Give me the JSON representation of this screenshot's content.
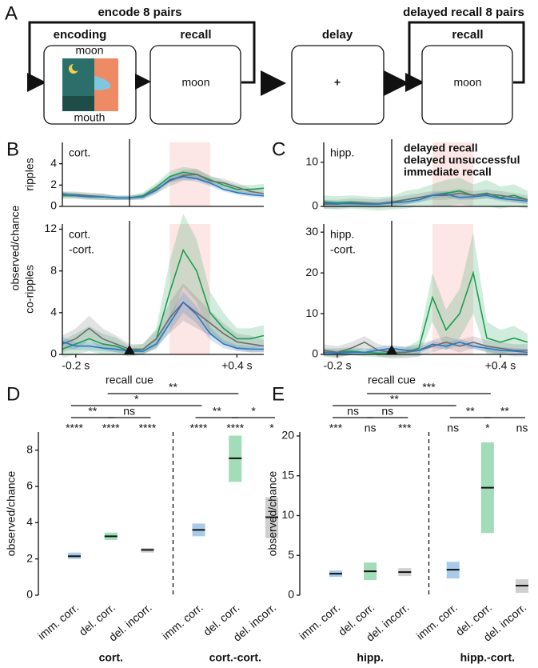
{
  "panel_a": {
    "letter": "A",
    "encode_loop": "encode 8 pairs",
    "encoding": "encoding",
    "recall": "recall",
    "cue_word_top": "moon",
    "cue_word_bottom": "mouth",
    "recall_word": "moon",
    "delay": "delay",
    "fixation": "+",
    "delayed_loop": "delayed recall 8 pairs",
    "delayed_recall": "recall",
    "delayed_word": "moon"
  },
  "chart_data": [
    {
      "type": "line",
      "panel": "B",
      "label": [
        "cort."
      ],
      "ylabel_outer": "observed/chance",
      "ylabel": "ripples",
      "x": [
        -0.25,
        -0.2,
        -0.15,
        -0.1,
        -0.05,
        0,
        0.05,
        0.1,
        0.15,
        0.2,
        0.25,
        0.3,
        0.35,
        0.4,
        0.45,
        0.5
      ],
      "xlim": [
        -0.25,
        0.5
      ],
      "ylim": [
        0,
        6
      ],
      "yticks": [
        0,
        2,
        4
      ],
      "vline": 0,
      "shade": [
        0.15,
        0.3
      ],
      "series": [
        {
          "color": "#1a9e50",
          "values": [
            1.0,
            1.0,
            0.9,
            0.9,
            0.8,
            0.8,
            1.0,
            1.8,
            2.8,
            3.2,
            3.0,
            2.5,
            2.0,
            1.6,
            1.6,
            1.7
          ],
          "err": [
            0.3,
            0.3,
            0.3,
            0.3,
            0.2,
            0.2,
            0.3,
            0.4,
            0.5,
            0.5,
            0.5,
            0.4,
            0.4,
            0.4,
            0.4,
            0.4
          ]
        },
        {
          "color": "#6e6e6e",
          "values": [
            1.1,
            1.1,
            1.0,
            0.9,
            0.8,
            0.8,
            0.9,
            1.6,
            2.4,
            2.9,
            3.0,
            2.4,
            2.2,
            1.8,
            1.4,
            1.2
          ],
          "err": [
            0.3,
            0.3,
            0.3,
            0.3,
            0.2,
            0.2,
            0.3,
            0.4,
            0.5,
            0.5,
            0.5,
            0.4,
            0.4,
            0.4,
            0.3,
            0.3
          ]
        },
        {
          "color": "#2b78c0",
          "values": [
            1.2,
            1.0,
            0.9,
            0.9,
            0.8,
            0.8,
            0.9,
            1.5,
            2.5,
            2.8,
            2.6,
            2.2,
            1.6,
            1.3,
            1.1,
            1.0
          ],
          "err": [
            0.2,
            0.2,
            0.2,
            0.2,
            0.2,
            0.2,
            0.2,
            0.3,
            0.3,
            0.3,
            0.3,
            0.3,
            0.2,
            0.2,
            0.2,
            0.2
          ]
        }
      ]
    },
    {
      "type": "line",
      "label": [
        "cort.",
        "-cort."
      ],
      "ylabel": "co-ripples",
      "x": [
        -0.25,
        -0.2,
        -0.15,
        -0.1,
        -0.05,
        0,
        0.05,
        0.1,
        0.15,
        0.2,
        0.25,
        0.3,
        0.35,
        0.4,
        0.45,
        0.5
      ],
      "xlim": [
        -0.25,
        0.5
      ],
      "ylim": [
        0,
        12.5
      ],
      "yticks": [
        0,
        4,
        8,
        12
      ],
      "vline": 0,
      "shade": [
        0.15,
        0.3
      ],
      "xticks": [
        {
          "value": -0.2,
          "label": "-0.2 s"
        },
        {
          "value": 0.4,
          "label": "+0.4 s"
        }
      ],
      "cue_label": "recall cue",
      "series": [
        {
          "color": "#1a9e50",
          "values": [
            0.5,
            1.0,
            1.5,
            1.0,
            0.8,
            0.3,
            0.5,
            1.5,
            6,
            10,
            8,
            4,
            2.5,
            1.5,
            1.5,
            1.8
          ],
          "err": [
            0.8,
            1,
            1.2,
            1,
            0.8,
            0.5,
            0.5,
            1,
            3,
            3.5,
            3,
            2,
            1.5,
            1,
            1,
            1
          ]
        },
        {
          "color": "#6e6e6e",
          "values": [
            1.0,
            1.5,
            2.5,
            1.5,
            1.0,
            0.5,
            0.5,
            1.5,
            3.5,
            5,
            4,
            3,
            2,
            1.2,
            1.0,
            0.8
          ],
          "err": [
            0.8,
            1,
            1.2,
            1,
            0.8,
            0.5,
            0.5,
            0.8,
            1.5,
            1.8,
            1.5,
            1.2,
            1,
            0.8,
            0.8,
            0.6
          ]
        },
        {
          "color": "#2b78c0",
          "values": [
            1.2,
            0.8,
            0.8,
            0.6,
            0.5,
            0.3,
            0.3,
            1.0,
            3.0,
            5,
            3.8,
            2,
            1,
            0.6,
            0.5,
            0.5
          ],
          "err": [
            0.5,
            0.4,
            0.4,
            0.3,
            0.3,
            0.2,
            0.2,
            0.4,
            0.8,
            1,
            0.8,
            0.6,
            0.4,
            0.3,
            0.3,
            0.3
          ]
        }
      ]
    },
    {
      "type": "line",
      "panel": "C",
      "label": [
        "hipp."
      ],
      "x": [
        -0.25,
        -0.2,
        -0.15,
        -0.1,
        -0.05,
        0,
        0.05,
        0.1,
        0.15,
        0.2,
        0.25,
        0.3,
        0.35,
        0.4,
        0.45,
        0.5
      ],
      "xlim": [
        -0.25,
        0.5
      ],
      "ylim": [
        0,
        14.5
      ],
      "yticks": [
        0,
        10
      ],
      "vline": 0,
      "shade": [
        0.15,
        0.3
      ],
      "series": [
        {
          "name": "delayed recall",
          "color": "#1a9e50",
          "values": [
            1,
            0.8,
            1,
            0.8,
            0.6,
            0.8,
            1.5,
            2,
            2.5,
            3,
            3.5,
            2.5,
            3,
            2,
            2.5,
            1.5
          ],
          "err": [
            1.5,
            1.5,
            1.5,
            1.5,
            1.5,
            1.5,
            2,
            2,
            2.5,
            3,
            3,
            2.5,
            3,
            2.5,
            2.5,
            2
          ]
        },
        {
          "name": "delayed unsuccessful",
          "color": "#6e6e6e",
          "values": [
            0.5,
            0.5,
            0.8,
            0.7,
            0.6,
            1,
            1.5,
            2,
            2.5,
            2.5,
            3,
            2.5,
            2.8,
            2.5,
            2,
            1.5
          ],
          "err": [
            1,
            1,
            1,
            1,
            1,
            1,
            1,
            1,
            1,
            1,
            1,
            1,
            1,
            1,
            1,
            1
          ]
        },
        {
          "name": "immediate recall",
          "color": "#2b78c0",
          "values": [
            0.8,
            0.6,
            0.6,
            0.5,
            0.5,
            0.8,
            1,
            1.5,
            2.5,
            2.8,
            2,
            2.2,
            2.5,
            1.8,
            1.5,
            1.2
          ],
          "err": [
            0.6,
            0.6,
            0.6,
            0.6,
            0.6,
            0.6,
            0.6,
            0.6,
            0.6,
            0.6,
            0.6,
            0.6,
            0.6,
            0.6,
            0.6,
            0.6
          ]
        }
      ]
    },
    {
      "type": "line",
      "label": [
        "hipp.",
        "-cort."
      ],
      "x": [
        -0.25,
        -0.2,
        -0.15,
        -0.1,
        -0.05,
        0,
        0.05,
        0.1,
        0.15,
        0.2,
        0.25,
        0.3,
        0.35,
        0.4,
        0.45,
        0.5
      ],
      "xlim": [
        -0.25,
        0.5
      ],
      "ylim": [
        0,
        32
      ],
      "yticks": [
        0,
        10,
        20,
        30
      ],
      "vline": 0,
      "shade": [
        0.15,
        0.3
      ],
      "xticks": [
        {
          "value": -0.2,
          "label": "-0.2 s"
        },
        {
          "value": 0.4,
          "label": "+0.4 s"
        }
      ],
      "cue_label": "recall cue",
      "series": [
        {
          "color": "#1a9e50",
          "values": [
            0.5,
            0.5,
            0.8,
            0.5,
            0.3,
            0.3,
            0.5,
            1.5,
            14,
            6,
            10,
            20,
            4,
            3,
            4,
            3
          ],
          "err": [
            1,
            1,
            1,
            1,
            1,
            1,
            1,
            2,
            6,
            5,
            6,
            10,
            4,
            3,
            3,
            2
          ]
        },
        {
          "color": "#6e6e6e",
          "values": [
            1,
            0.5,
            1.5,
            3,
            1,
            0.5,
            0.5,
            1,
            2,
            3,
            2,
            3,
            2,
            1.5,
            1,
            1
          ],
          "err": [
            1.5,
            1.5,
            1.5,
            1.5,
            1.5,
            1.5,
            1.5,
            1.5,
            1.5,
            1.5,
            1.5,
            1.5,
            1.5,
            1.5,
            1.5,
            1.5
          ]
        },
        {
          "color": "#2b78c0",
          "values": [
            0.5,
            0.3,
            0.5,
            0.5,
            1,
            1.5,
            1,
            1,
            2.5,
            2,
            3,
            2,
            1.5,
            1,
            0.8,
            0.5
          ],
          "err": [
            0.8,
            0.8,
            0.8,
            0.8,
            0.8,
            0.8,
            0.8,
            0.8,
            0.8,
            0.8,
            0.8,
            0.8,
            0.8,
            0.8,
            0.8,
            0.8
          ]
        }
      ]
    },
    {
      "type": "range",
      "panel": "D",
      "ylabel": "observed/chance",
      "categories": [
        "imm. corr.",
        "del. corr.",
        "del. incorr.",
        "imm. corr.",
        "del. corr.",
        "del. incorr."
      ],
      "values": [
        2.15,
        3.25,
        2.5,
        3.6,
        7.55,
        4.3
      ],
      "lower": [
        2.0,
        3.05,
        2.35,
        3.25,
        6.25,
        3.15
      ],
      "upper": [
        2.35,
        3.45,
        2.6,
        3.95,
        8.8,
        5.4
      ],
      "colors": [
        "#a9cbe9",
        "#a3dcb8",
        "#cfcfcf",
        "#a9cbe9",
        "#a3dcb8",
        "#cfcfcf"
      ],
      "ylim": [
        0,
        9
      ],
      "yticks": [
        0,
        2,
        4,
        6,
        8
      ],
      "stars": [
        "****",
        "****",
        "****",
        "****",
        "****",
        "*"
      ],
      "brackets": [
        {
          "label": "**",
          "span": [
            0,
            1
          ]
        },
        {
          "label": "ns",
          "span": [
            1,
            2
          ]
        },
        {
          "label": "**",
          "span": [
            3,
            4
          ]
        },
        {
          "label": "*",
          "span": [
            4,
            5
          ]
        },
        {
          "label": "*",
          "span": [
            0,
            3
          ]
        },
        {
          "label": "**",
          "span": [
            1,
            4
          ]
        }
      ],
      "groups": [
        "cort.",
        "cort.-cort."
      ]
    },
    {
      "type": "range",
      "panel": "E",
      "ylabel": "observed/chance",
      "categories": [
        "imm. corr.",
        "del. corr.",
        "del. incorr.",
        "imm. corr.",
        "del. corr.",
        "del. incorr."
      ],
      "values": [
        2.7,
        3.0,
        2.9,
        3.2,
        13.5,
        1.2
      ],
      "lower": [
        2.3,
        1.9,
        2.4,
        2.1,
        7.8,
        0.3
      ],
      "upper": [
        3.1,
        4.1,
        3.4,
        4.2,
        19.2,
        2.0
      ],
      "colors": [
        "#a9cbe9",
        "#a3dcb8",
        "#cfcfcf",
        "#a9cbe9",
        "#a3dcb8",
        "#cfcfcf"
      ],
      "ylim": [
        0,
        20.5
      ],
      "yticks": [
        0,
        5,
        10,
        15,
        20
      ],
      "stars": [
        "***",
        "ns",
        "***",
        "ns",
        "*",
        "ns"
      ],
      "brackets": [
        {
          "label": "ns",
          "span": [
            0,
            1
          ]
        },
        {
          "label": "ns",
          "span": [
            1,
            2
          ]
        },
        {
          "label": "**",
          "span": [
            3,
            4
          ]
        },
        {
          "label": "**",
          "span": [
            4,
            5
          ]
        },
        {
          "label": "**",
          "span": [
            0,
            3
          ]
        },
        {
          "label": "***",
          "span": [
            1,
            4
          ]
        }
      ],
      "groups": [
        "hipp.",
        "hipp.-cort."
      ]
    }
  ]
}
